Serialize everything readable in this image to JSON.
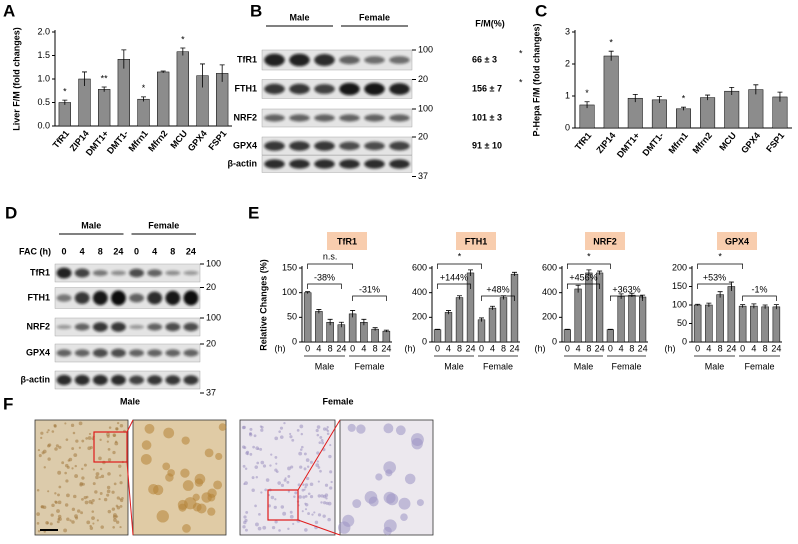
{
  "chart_data": [
    {
      "type": "bar",
      "panel": "A",
      "y_label": "Liver F/M (fold changes)",
      "categories": [
        "TfR1",
        "ZIP14",
        "DMT1+",
        "DMT1-",
        "Mfrn1",
        "Mfrn2",
        "MCU",
        "GPX4",
        "FSP1"
      ],
      "values": [
        0.5,
        1.0,
        0.78,
        1.42,
        0.57,
        1.15,
        1.58,
        1.07,
        1.12
      ],
      "errors": [
        0.05,
        0.15,
        0.05,
        0.2,
        0.05,
        0.02,
        0.08,
        0.25,
        0.18
      ],
      "value_annotations": [
        "*",
        null,
        "**",
        null,
        "*",
        null,
        "*",
        null,
        null
      ],
      "color": "#8c8c8c",
      "ylim": [
        0,
        2
      ],
      "yticks": [
        {
          "value": 0,
          "label": "0.0"
        },
        0.5,
        {
          "value": 1,
          "label": "1.0"
        },
        1.5,
        {
          "value": 2,
          "label": "2.0"
        }
      ]
    },
    {
      "type": "bar",
      "panel": "C",
      "y_label": "P-Hepa F/M (fold changes)",
      "categories": [
        "TfR1",
        "ZIP14",
        "DMT1+",
        "DMT1-",
        "Mfrn1",
        "Mfrn2",
        "MCU",
        "GPX4",
        "FSP1"
      ],
      "values": [
        0.72,
        2.25,
        0.93,
        0.88,
        0.6,
        0.95,
        1.15,
        1.2,
        0.97
      ],
      "errors": [
        0.1,
        0.15,
        0.12,
        0.1,
        0.05,
        0.08,
        0.12,
        0.15,
        0.15
      ],
      "value_annotations": [
        "*",
        "*",
        null,
        null,
        "*",
        null,
        null,
        null,
        null
      ],
      "color": "#8c8c8c",
      "ylim": [
        0,
        3
      ],
      "yticks": [
        0,
        1,
        2,
        3
      ]
    },
    {
      "type": "bar",
      "panel": "E",
      "title": "TfR1",
      "y_label": "Relative Changes (%)",
      "x_unit": "(h)",
      "categories": [
        "0",
        "4",
        "8",
        "24",
        "0",
        "4",
        "8",
        "24"
      ],
      "groups": [
        "Male",
        "Female"
      ],
      "values": [
        100,
        62,
        40,
        35,
        57,
        40,
        26,
        22
      ],
      "errors": [
        2,
        4,
        6,
        5,
        7,
        6,
        3,
        2
      ],
      "annotations": [
        "-38%",
        "-31%",
        "n.s."
      ],
      "color": "#8c8c8c",
      "ylim": [
        0,
        150
      ],
      "yticks": [
        0,
        50,
        100,
        150
      ]
    },
    {
      "type": "bar",
      "title": "FTH1",
      "x_unit": "(h)",
      "categories": [
        "0",
        "4",
        "8",
        "24",
        "0",
        "4",
        "8",
        "24"
      ],
      "groups": [
        "Male",
        "Female"
      ],
      "values": [
        100,
        240,
        360,
        560,
        180,
        275,
        360,
        550
      ],
      "errors": [
        3,
        15,
        15,
        25,
        15,
        15,
        15,
        15
      ],
      "annotations": [
        "+144%",
        "+48%",
        "*"
      ],
      "color": "#8c8c8c",
      "ylim": [
        0,
        600
      ],
      "yticks": [
        0,
        200,
        400,
        600
      ]
    },
    {
      "type": "bar",
      "title": "NRF2",
      "x_unit": "(h)",
      "categories": [
        "0",
        "4",
        "8",
        "24",
        "0",
        "4",
        "8",
        "24"
      ],
      "groups": [
        "Male",
        "Female"
      ],
      "values": [
        100,
        430,
        560,
        560,
        100,
        370,
        380,
        365
      ],
      "errors": [
        3,
        30,
        25,
        15,
        3,
        20,
        15,
        15
      ],
      "annotations": [
        "+456%",
        "+363%",
        "*"
      ],
      "color": "#8c8c8c",
      "ylim": [
        0,
        600
      ],
      "yticks": [
        0,
        200,
        400,
        600
      ]
    },
    {
      "type": "bar",
      "title": "GPX4",
      "x_unit": "(h)",
      "categories": [
        "0",
        "4",
        "8",
        "24",
        "0",
        "4",
        "8",
        "24"
      ],
      "groups": [
        "Male",
        "Female"
      ],
      "values": [
        100,
        100,
        128,
        150,
        97,
        97,
        95,
        95
      ],
      "errors": [
        2,
        5,
        8,
        12,
        4,
        6,
        5,
        6
      ],
      "annotations": [
        "+53%",
        "-1%",
        "*"
      ],
      "color": "#8c8c8c",
      "ylim": [
        0,
        200
      ],
      "yticks": [
        0,
        50,
        100,
        150,
        200
      ]
    }
  ],
  "blots": [
    {
      "panel": "B",
      "groups": [
        "Male",
        "Female"
      ],
      "header": "F/M(%)",
      "rows": [
        {
          "label": "TfR1",
          "mw": 100,
          "ratio": "66 ± 3",
          "star": "*"
        },
        {
          "label": "FTH1",
          "mw": 20,
          "ratio": "156 ± 7",
          "star": "*"
        },
        {
          "label": "NRF2",
          "mw": 100,
          "ratio": "101 ± 3"
        },
        {
          "label": "GPX4",
          "mw": 20,
          "ratio": "91 ± 10"
        },
        {
          "label": "β-actin",
          "mw": 37
        }
      ]
    },
    {
      "panel": "D",
      "groups": [
        "Male",
        "Female"
      ],
      "lane_title": "FAC (h)",
      "lanes": [
        "0",
        "4",
        "8",
        "24",
        "0",
        "4",
        "8",
        "24"
      ],
      "rows": [
        {
          "label": "TfR1",
          "mw": 100
        },
        {
          "label": "FTH1",
          "mw": 20
        },
        {
          "label": "NRF2",
          "mw": 100
        },
        {
          "label": "GPX4",
          "mw": 20
        },
        {
          "label": "β-actin",
          "mw": 37
        }
      ]
    }
  ],
  "micrographs": {
    "panel": "F",
    "labels": [
      "Male",
      "Female"
    ]
  }
}
